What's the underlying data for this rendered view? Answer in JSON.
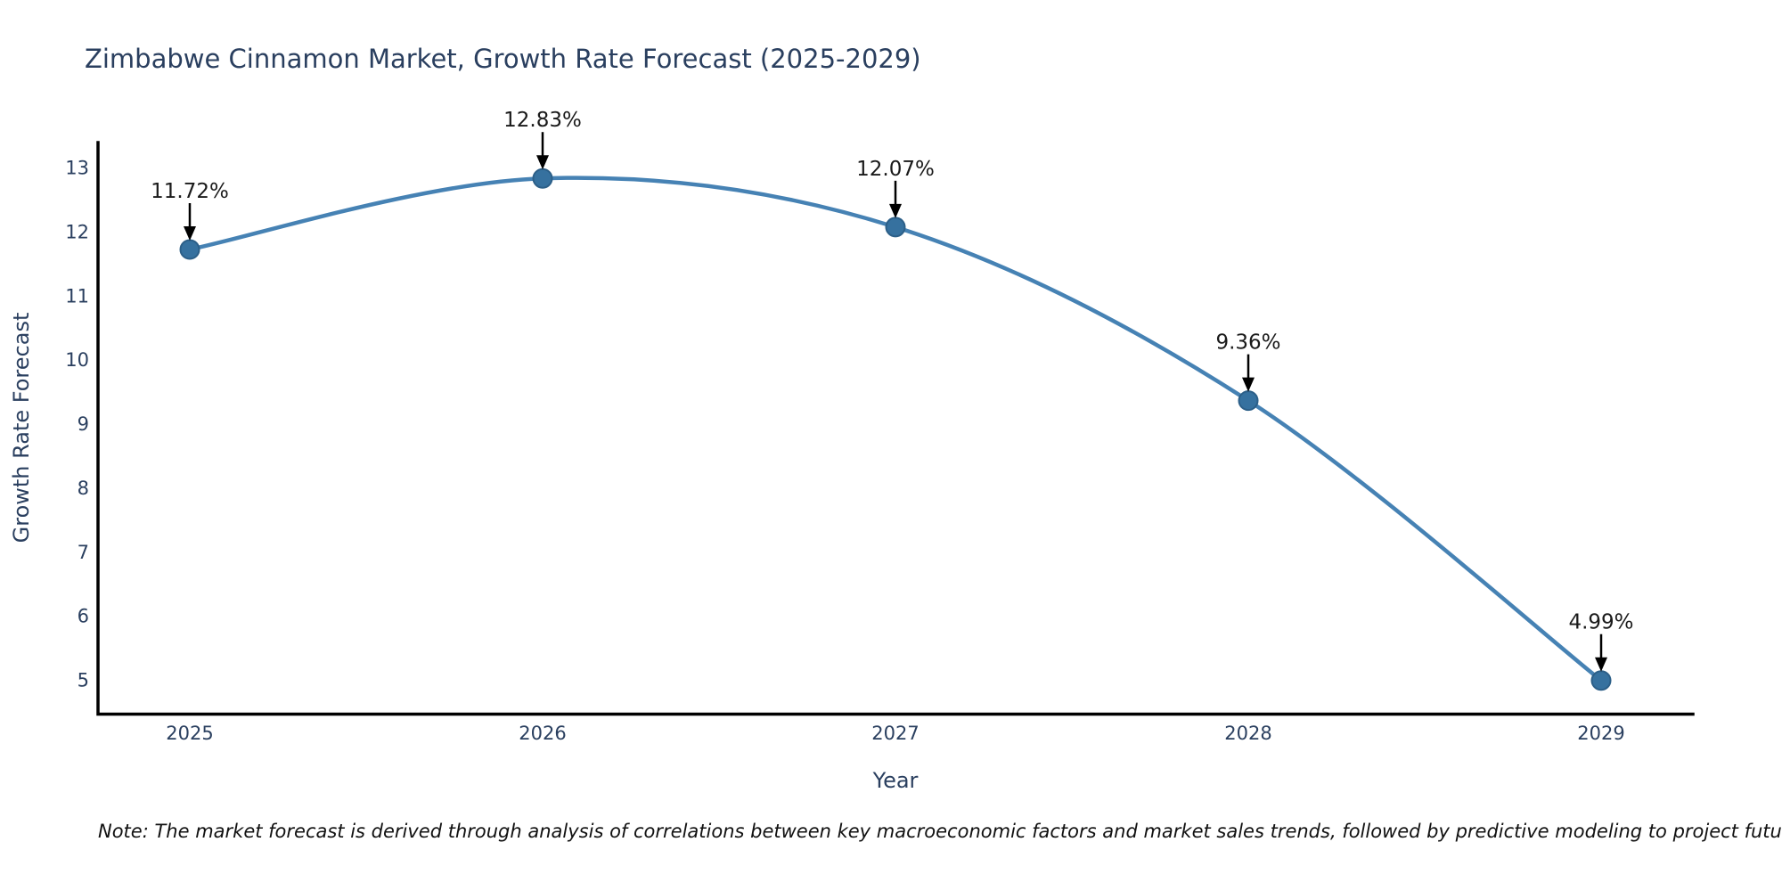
{
  "title": "Zimbabwe Cinnamon Market, Growth Rate Forecast (2025-2029)",
  "note": "Note: The market forecast is derived through analysis of correlations between key macroeconomic factors and market sales trends, followed by predictive modeling to project future sales",
  "chart_data": {
    "type": "line",
    "title": "Zimbabwe Cinnamon Market, Growth Rate Forecast (2025-2029)",
    "x": [
      2025,
      2026,
      2027,
      2028,
      2029
    ],
    "values": [
      11.72,
      12.83,
      12.07,
      9.36,
      4.99
    ],
    "point_labels": [
      "11.72%",
      "12.83%",
      "12.07%",
      "9.36%",
      "4.99%"
    ],
    "xlabel": "Year",
    "ylabel": "Growth Rate Forecast",
    "yticks": [
      5,
      6,
      7,
      8,
      9,
      10,
      11,
      12,
      13
    ],
    "ylim": [
      4.5,
      13.4
    ],
    "line_style": "spline",
    "markers": true,
    "grid": false,
    "legend": "none",
    "annotations": "value labels with black down-arrows above each point",
    "colors": {
      "line": "#4682b4",
      "marker": "#36719f",
      "marker_edge": "#2c5f88",
      "axis": "#000000",
      "arrow": "#000000",
      "text": "#2a3f5f",
      "annotation_text": "#1a1a1a"
    }
  }
}
